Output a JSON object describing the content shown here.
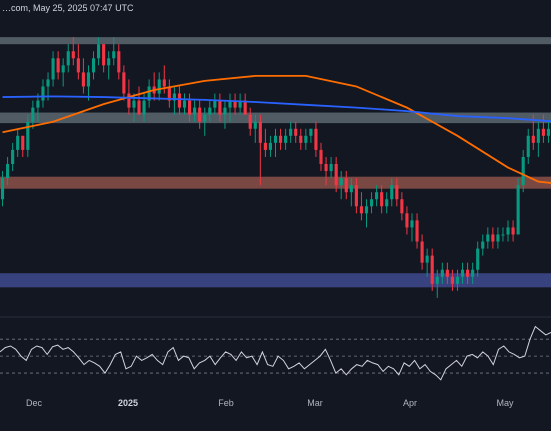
{
  "header": {
    "text": "…com, May 25, 2025 07:47 UTC"
  },
  "colors": {
    "background": "#131722",
    "bull": "#089981",
    "bear": "#f23645",
    "ma_short": "#ff6d00",
    "ma_long": "#2962ff",
    "zone_gray": "#5d6770",
    "zone_brown": "#8d5149",
    "zone_blue": "#3f4a8e",
    "rsi": "#d1d4dc"
  },
  "chart_data": {
    "type": "candlestick",
    "title": "",
    "x_ticks": [
      "Dec",
      "2025",
      "Feb",
      "Mar",
      "Apr",
      "May"
    ],
    "zones": [
      {
        "name": "",
        "color": "gray",
        "low": 100.0,
        "high": 101.0
      },
      {
        "name": "",
        "color": "gray",
        "low": 88.8,
        "high": 90.3
      },
      {
        "name": "",
        "color": "brown",
        "low": 79.5,
        "high": 81.2
      },
      {
        "name": "",
        "color": "blue",
        "low": 65.5,
        "high": 67.5
      }
    ],
    "candles": [
      [
        78,
        82,
        77,
        81
      ],
      [
        81,
        84,
        80,
        83
      ],
      [
        83,
        86,
        82,
        85
      ],
      [
        85,
        88,
        84,
        87
      ],
      [
        87,
        87,
        84,
        85
      ],
      [
        85,
        90,
        84,
        89
      ],
      [
        89,
        92,
        88,
        91
      ],
      [
        91,
        93,
        89,
        92
      ],
      [
        92,
        95,
        91,
        94
      ],
      [
        94,
        96,
        92,
        95
      ],
      [
        95,
        99,
        94,
        98
      ],
      [
        98,
        99,
        95,
        96
      ],
      [
        96,
        98,
        94,
        97
      ],
      [
        97,
        100,
        96,
        99
      ],
      [
        99,
        101,
        97,
        98
      ],
      [
        98,
        100,
        95,
        96
      ],
      [
        96,
        98,
        93,
        94
      ],
      [
        94,
        97,
        92,
        96
      ],
      [
        96,
        99,
        95,
        98
      ],
      [
        98,
        101,
        97,
        100
      ],
      [
        100,
        100,
        96,
        97
      ],
      [
        97,
        99,
        95,
        98
      ],
      [
        98,
        101,
        97,
        99
      ],
      [
        99,
        100,
        95,
        96
      ],
      [
        96,
        97,
        92,
        93
      ],
      [
        93,
        95,
        90,
        91
      ],
      [
        91,
        93,
        89,
        92
      ],
      [
        92,
        94,
        90,
        90
      ],
      [
        90,
        93,
        89,
        92
      ],
      [
        92,
        95,
        91,
        94
      ],
      [
        94,
        96,
        92,
        93
      ],
      [
        93,
        96,
        92,
        95
      ],
      [
        95,
        97,
        93,
        94
      ],
      [
        94,
        95,
        91,
        92
      ],
      [
        92,
        94,
        90,
        93
      ],
      [
        93,
        94,
        90,
        91
      ],
      [
        91,
        93,
        90,
        92
      ],
      [
        92,
        93,
        89,
        90
      ],
      [
        90,
        92,
        89,
        91
      ],
      [
        91,
        92,
        88,
        89
      ],
      [
        89,
        91,
        87,
        90
      ],
      [
        90,
        92,
        89,
        91
      ],
      [
        91,
        93,
        90,
        92
      ],
      [
        92,
        93,
        89,
        90
      ],
      [
        90,
        92,
        88,
        91
      ],
      [
        91,
        93,
        89,
        92
      ],
      [
        92,
        93,
        90,
        91
      ],
      [
        91,
        93,
        90,
        92
      ],
      [
        92,
        93,
        90,
        90
      ],
      [
        90,
        91,
        87,
        88
      ],
      [
        88,
        90,
        86,
        89
      ],
      [
        89,
        90,
        80,
        86
      ],
      [
        86,
        88,
        84,
        85
      ],
      [
        85,
        87,
        84,
        86
      ],
      [
        86,
        88,
        84,
        87
      ],
      [
        87,
        88,
        85,
        86
      ],
      [
        86,
        88,
        85,
        87
      ],
      [
        87,
        89,
        86,
        88
      ],
      [
        88,
        89,
        86,
        87
      ],
      [
        87,
        88,
        85,
        86
      ],
      [
        86,
        88,
        85,
        87
      ],
      [
        87,
        88,
        86,
        88
      ],
      [
        88,
        89,
        84,
        85
      ],
      [
        85,
        86,
        82,
        83
      ],
      [
        83,
        84,
        80,
        82
      ],
      [
        82,
        84,
        81,
        83
      ],
      [
        83,
        84,
        79,
        80
      ],
      [
        80,
        82,
        78,
        81
      ],
      [
        81,
        82,
        78,
        79
      ],
      [
        79,
        81,
        77,
        80
      ],
      [
        80,
        81,
        76,
        77
      ],
      [
        77,
        79,
        75,
        76
      ],
      [
        76,
        78,
        74,
        77
      ],
      [
        77,
        79,
        76,
        78
      ],
      [
        78,
        80,
        77,
        79
      ],
      [
        79,
        80,
        76,
        77
      ],
      [
        77,
        79,
        76,
        78
      ],
      [
        78,
        81,
        77,
        80
      ],
      [
        80,
        81,
        77,
        78
      ],
      [
        78,
        79,
        75,
        76
      ],
      [
        76,
        77,
        73,
        74
      ],
      [
        74,
        76,
        72,
        75
      ],
      [
        75,
        76,
        71,
        72
      ],
      [
        72,
        73,
        68,
        69
      ],
      [
        69,
        71,
        67,
        70
      ],
      [
        70,
        71,
        65,
        66
      ],
      [
        66,
        68,
        64,
        67
      ],
      [
        67,
        69,
        66,
        68
      ],
      [
        68,
        69,
        66,
        67
      ],
      [
        67,
        68,
        65,
        66
      ],
      [
        66,
        68,
        65,
        67
      ],
      [
        67,
        69,
        66,
        68
      ],
      [
        68,
        69,
        66,
        67
      ],
      [
        67,
        69,
        66,
        68
      ],
      [
        68,
        72,
        67,
        71
      ],
      [
        71,
        73,
        70,
        72
      ],
      [
        72,
        74,
        71,
        73
      ],
      [
        73,
        74,
        71,
        72
      ],
      [
        72,
        74,
        71,
        73
      ],
      [
        73,
        74,
        72,
        73
      ],
      [
        73,
        75,
        72,
        74
      ],
      [
        74,
        75,
        72,
        73
      ],
      [
        73,
        81,
        73,
        80
      ],
      [
        80,
        85,
        79,
        84
      ],
      [
        84,
        88,
        83,
        87
      ],
      [
        87,
        90,
        85,
        86
      ],
      [
        86,
        89,
        84,
        88
      ],
      [
        88,
        90,
        86,
        87
      ],
      [
        87,
        89,
        86,
        88
      ]
    ],
    "moving_averages": [
      {
        "name": "",
        "color": "orange",
        "points": [
          [
            0,
            87.5
          ],
          [
            10,
            89
          ],
          [
            20,
            91.5
          ],
          [
            30,
            93.5
          ],
          [
            40,
            94.8
          ],
          [
            50,
            95.5
          ],
          [
            60,
            95.5
          ],
          [
            70,
            94
          ],
          [
            80,
            91
          ],
          [
            90,
            87
          ],
          [
            100,
            82.5
          ],
          [
            106,
            80.5
          ],
          [
            110,
            80.2
          ]
        ]
      },
      {
        "name": "",
        "color": "blue",
        "points": [
          [
            0,
            92.5
          ],
          [
            10,
            92.6
          ],
          [
            20,
            92.5
          ],
          [
            30,
            92.3
          ],
          [
            40,
            92.1
          ],
          [
            50,
            91.8
          ],
          [
            60,
            91.4
          ],
          [
            70,
            91
          ],
          [
            80,
            90.5
          ],
          [
            90,
            89.8
          ],
          [
            100,
            89.5
          ],
          [
            110,
            89
          ]
        ]
      }
    ],
    "y_range": [
      62,
      104
    ],
    "rsi": {
      "levels": [
        70,
        50,
        30
      ],
      "range": [
        10,
        95
      ],
      "values": [
        55,
        60,
        62,
        58,
        50,
        45,
        58,
        62,
        60,
        52,
        61,
        63,
        58,
        60,
        55,
        48,
        40,
        45,
        42,
        38,
        30,
        40,
        52,
        55,
        35,
        38,
        50,
        45,
        48,
        52,
        45,
        40,
        55,
        60,
        45,
        50,
        48,
        35,
        42,
        45,
        50,
        40,
        48,
        55,
        52,
        45,
        55,
        48,
        50,
        40,
        55,
        40,
        38,
        50,
        45,
        35,
        38,
        42,
        35,
        40,
        45,
        50,
        58,
        45,
        30,
        35,
        28,
        35,
        40,
        38,
        45,
        42,
        40,
        32,
        38,
        35,
        28,
        42,
        38,
        45,
        35,
        40,
        32,
        28,
        22,
        35,
        40,
        45,
        38,
        50,
        52,
        48,
        55,
        50,
        40,
        58,
        62,
        55,
        52,
        48,
        50,
        70,
        85,
        80,
        75,
        78
      ]
    }
  }
}
